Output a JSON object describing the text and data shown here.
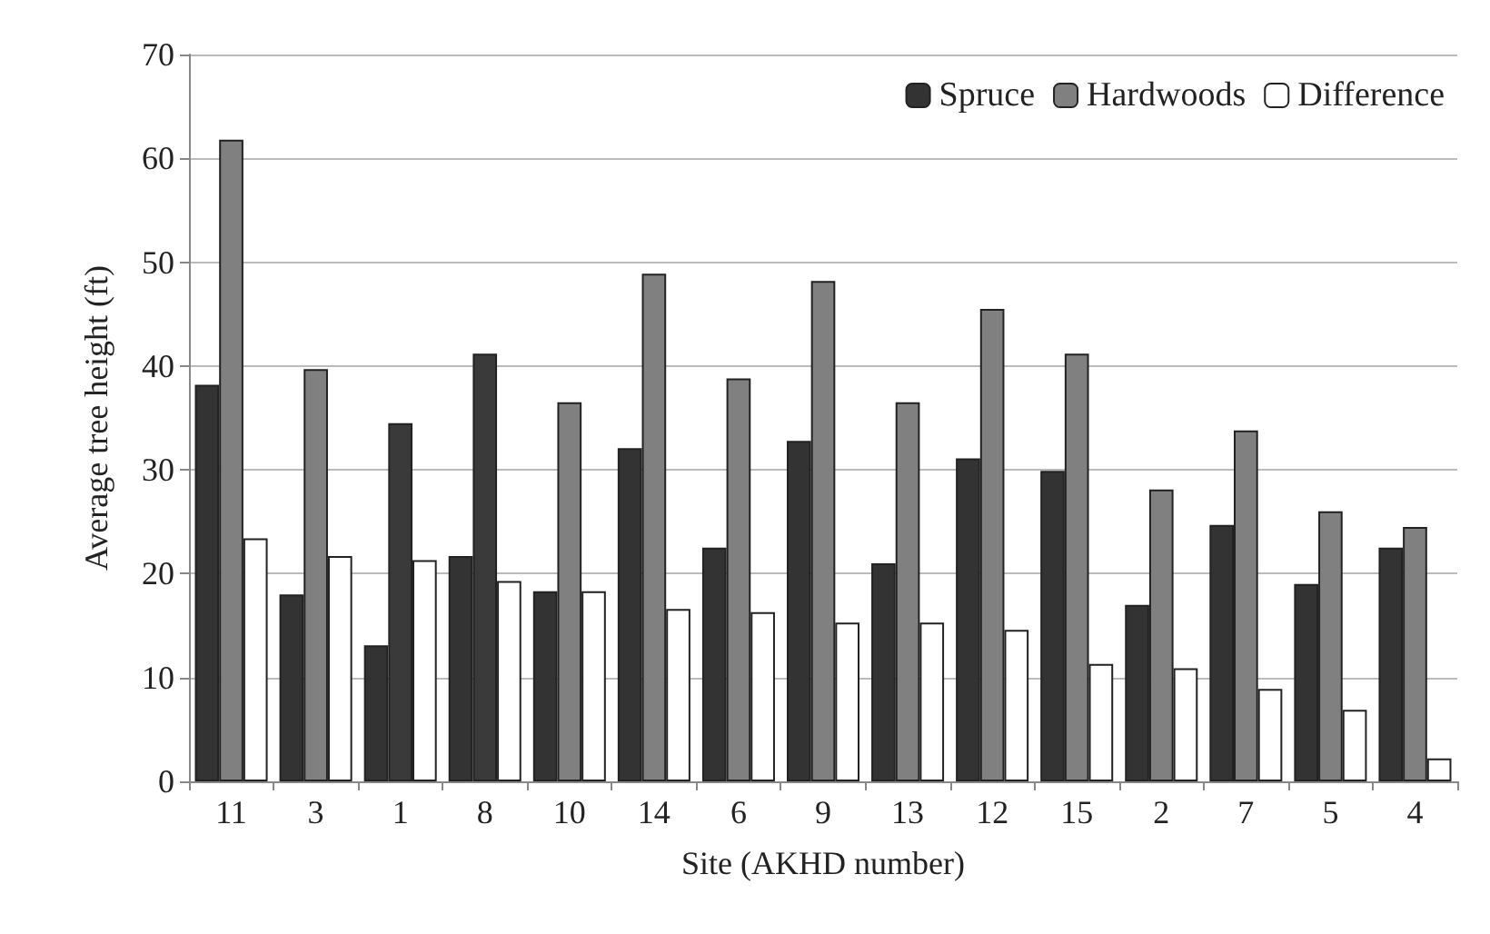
{
  "chart_data": {
    "type": "bar",
    "xlabel": "Site (AKHD number)",
    "ylabel": "Average tree height (ft)",
    "categories": [
      "11",
      "3",
      "1",
      "8",
      "10",
      "14",
      "6",
      "9",
      "13",
      "12",
      "15",
      "2",
      "7",
      "5",
      "4"
    ],
    "series": [
      {
        "name": "Spruce",
        "color": "#333333",
        "values": [
          38.2,
          18.0,
          13.1,
          21.7,
          18.3,
          32.1,
          22.5,
          32.8,
          21.0,
          31.1,
          29.9,
          17.0,
          24.7,
          19.0,
          22.5
        ]
      },
      {
        "name": "Hardwoods",
        "color": "#808080",
        "colors": [
          "#808080",
          "#808080",
          "#3a3a3a",
          "#3a3a3a",
          "#808080",
          "#808080",
          "#808080",
          "#808080",
          "#808080",
          "#808080",
          "#808080",
          "#808080",
          "#808080",
          "#808080",
          "#808080"
        ],
        "values": [
          61.8,
          39.7,
          34.5,
          41.2,
          36.5,
          48.9,
          38.8,
          48.2,
          36.5,
          45.5,
          41.2,
          28.1,
          33.8,
          26.0,
          24.5
        ]
      },
      {
        "name": "Difference",
        "color": "#ffffff",
        "values": [
          23.4,
          21.7,
          21.3,
          19.3,
          18.3,
          16.6,
          16.3,
          15.3,
          15.3,
          14.6,
          11.3,
          10.9,
          8.9,
          6.9,
          2.2
        ]
      }
    ],
    "ylim": [
      0,
      70
    ],
    "yticks": [
      0,
      10,
      20,
      30,
      40,
      50,
      60,
      70
    ],
    "grid": "y",
    "legend": "top right"
  }
}
